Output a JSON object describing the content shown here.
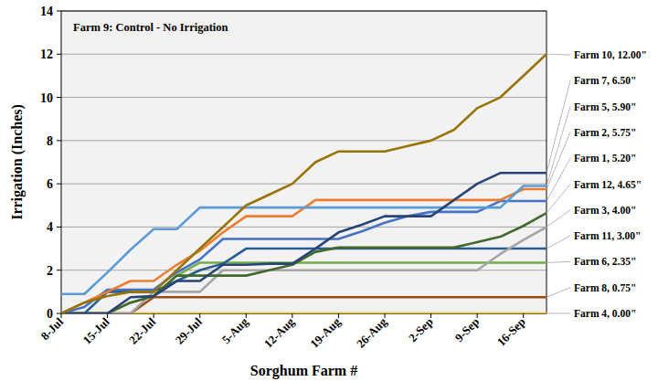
{
  "chart_data": {
    "type": "line",
    "annotation": "Farm 9: Control - No Irrigation",
    "x_label": "Sorghum Farm #",
    "y_label": "Irrigation (Inches)",
    "categories": [
      "8-Jul",
      null,
      "15-Jul",
      null,
      "22-Jul",
      null,
      "29-Jul",
      null,
      "5-Aug",
      null,
      "12-Aug",
      null,
      "19-Aug",
      null,
      "26-Aug",
      null,
      "2-Sep",
      null,
      "9-Sep",
      null,
      "16-Sep",
      null
    ],
    "ylim": [
      0,
      14
    ],
    "yticks": [
      0,
      2,
      4,
      6,
      8,
      10,
      12,
      14
    ],
    "grid": true,
    "series": [
      {
        "name": "Farm 10, 12.00\"",
        "color": "#997300",
        "values": [
          0,
          0.5,
          0.8,
          1,
          1,
          2,
          3,
          4,
          5,
          5.5,
          6,
          7,
          7.5,
          7.5,
          7.5,
          7.75,
          8,
          8.5,
          9.5,
          10,
          11,
          12
        ]
      },
      {
        "name": "Farm 7, 6.50\"",
        "color": "#264478",
        "values": [
          0,
          0,
          0,
          0.75,
          0.8,
          1.5,
          1.5,
          2.25,
          2.25,
          2.3,
          2.3,
          3,
          3.75,
          4.1,
          4.5,
          4.5,
          4.5,
          5.25,
          6,
          6.5,
          6.5,
          6.5
        ]
      },
      {
        "name": "Farm 5, 5.90\"",
        "color": "#5B9BD5",
        "values": [
          0.9,
          0.9,
          1.9,
          2.95,
          3.9,
          3.9,
          4.9,
          4.9,
          4.9,
          4.9,
          4.9,
          4.9,
          4.9,
          4.9,
          4.9,
          4.9,
          4.9,
          4.9,
          4.9,
          4.9,
          5.9,
          5.9
        ]
      },
      {
        "name": "Farm 2, 5.75\"",
        "color": "#ED7D31",
        "values": [
          0,
          0.5,
          1,
          1.5,
          1.5,
          2.25,
          2.9,
          3.75,
          4.5,
          4.5,
          4.5,
          5.25,
          5.25,
          5.25,
          5.25,
          5.25,
          5.25,
          5.25,
          5.25,
          5.25,
          5.75,
          5.75
        ]
      },
      {
        "name": "Farm 1, 5.20\"",
        "color": "#4472C4",
        "values": [
          0,
          0.3,
          1.1,
          1.1,
          1.1,
          1.9,
          2.5,
          3.45,
          3.45,
          3.45,
          3.45,
          3.45,
          3.45,
          3.8,
          4.2,
          4.5,
          4.7,
          4.7,
          4.7,
          5.2,
          5.2,
          5.2
        ]
      },
      {
        "name": "Farm 12, 4.65\"",
        "color": "#43682B",
        "values": [
          0,
          0,
          0,
          0.5,
          0.8,
          1.75,
          1.75,
          1.75,
          1.75,
          2,
          2.25,
          2.85,
          3.05,
          3.05,
          3.05,
          3.05,
          3.05,
          3.05,
          3.3,
          3.55,
          4.05,
          4.65
        ]
      },
      {
        "name": "Farm 3, 4.00\"",
        "color": "#A5A5A5",
        "values": [
          0,
          0,
          0,
          0,
          1,
          1,
          1,
          2,
          2,
          2,
          2,
          2,
          2,
          2,
          2,
          2,
          2,
          2,
          2,
          2.75,
          3.4,
          4
        ]
      },
      {
        "name": "Farm 11, 3.00\"",
        "color": "#255E91",
        "values": [
          0,
          0,
          1,
          1,
          1,
          1.5,
          2,
          2.3,
          3,
          3,
          3,
          3,
          3,
          3,
          3,
          3,
          3,
          3,
          3,
          3,
          3,
          3
        ]
      },
      {
        "name": "Farm 6, 2.35\"",
        "color": "#70AD47",
        "values": [
          0,
          0,
          0,
          0.5,
          0.8,
          1.75,
          2.35,
          2.35,
          2.35,
          2.35,
          2.35,
          2.35,
          2.35,
          2.35,
          2.35,
          2.35,
          2.35,
          2.35,
          2.35,
          2.35,
          2.35,
          2.35
        ]
      },
      {
        "name": "Farm 8, 0.75\"",
        "color": "#9E480E",
        "values": [
          0,
          0,
          0,
          0,
          0.75,
          0.75,
          0.75,
          0.75,
          0.75,
          0.75,
          0.75,
          0.75,
          0.75,
          0.75,
          0.75,
          0.75,
          0.75,
          0.75,
          0.75,
          0.75,
          0.75,
          0.75
        ]
      },
      {
        "name": "Farm 4, 0.00\"",
        "color": "#FFC000",
        "values": [
          0,
          0,
          0,
          0,
          0,
          0,
          0,
          0,
          0,
          0,
          0,
          0,
          0,
          0,
          0,
          0,
          0,
          0,
          0,
          0,
          0,
          0
        ]
      }
    ]
  }
}
